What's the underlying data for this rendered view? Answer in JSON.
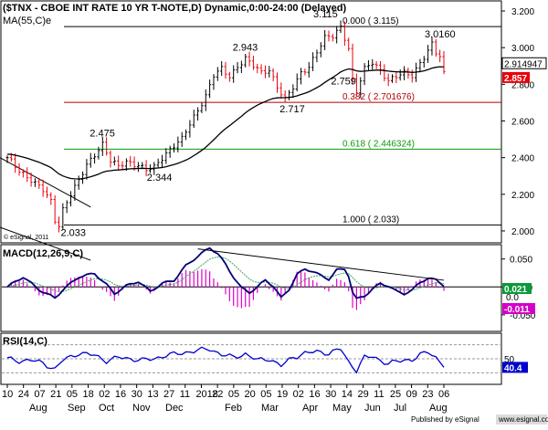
{
  "chart_data": [
    {
      "type": "candlestick",
      "title": "($TNX - CBOE INT RATE 10 YR T-NOTE,D) Dynamic,0:00-24:00 (Delayed)",
      "ma_label": "MA(55,C)e",
      "copyright": "© eSignal, 2011",
      "yticks": [
        "3.200",
        "3.000",
        "2.800",
        "2.600",
        "2.400",
        "2.200",
        "2.000"
      ],
      "ylim": [
        1.94,
        3.25
      ],
      "price_badges": {
        "upper": "2.914947",
        "current": "2.857"
      },
      "colors": {
        "up": "#000000",
        "down": "#e8000b",
        "ma": "#000000",
        "badge_red": "#e8000b"
      },
      "fib_levels": [
        {
          "value": 3.115,
          "label": "0.000 ( 3.115)",
          "color": "#000000"
        },
        {
          "value": 2.701676,
          "label": "0.382 ( 2.701676)",
          "color": "#b00000"
        },
        {
          "value": 2.446324,
          "label": "0.618 ( 2.446324)",
          "color": "#0a9a0a"
        },
        {
          "value": 2.033,
          "label": "1.000 ( 2.033)",
          "color": "#000000"
        }
      ],
      "annotations": [
        "2.033",
        "2.475",
        "2.344",
        "2.943",
        "2.717",
        "2.759",
        "3.115",
        "3.0160"
      ],
      "trend_channel": [
        {
          "x": [
            0,
            21
          ],
          "y": [
            2.4,
            2.13
          ]
        },
        {
          "x": [
            0,
            21
          ],
          "y": [
            2.02,
            1.84
          ]
        }
      ],
      "keypoints": [
        [
          0,
          2.4
        ],
        [
          3,
          2.33
        ],
        [
          6,
          2.28
        ],
        [
          9,
          2.22
        ],
        [
          11,
          2.16
        ],
        [
          12,
          2.06
        ],
        [
          13,
          2.033
        ],
        [
          14,
          2.12
        ],
        [
          16,
          2.2
        ],
        [
          18,
          2.27
        ],
        [
          20,
          2.36
        ],
        [
          22,
          2.42
        ],
        [
          24,
          2.475
        ],
        [
          26,
          2.38
        ],
        [
          28,
          2.35
        ],
        [
          30,
          2.38
        ],
        [
          33,
          2.36
        ],
        [
          35,
          2.33
        ],
        [
          37,
          2.344
        ],
        [
          39,
          2.4
        ],
        [
          41,
          2.45
        ],
        [
          44,
          2.5
        ],
        [
          46,
          2.58
        ],
        [
          48,
          2.66
        ],
        [
          50,
          2.74
        ],
        [
          52,
          2.85
        ],
        [
          54,
          2.88
        ],
        [
          56,
          2.84
        ],
        [
          58,
          2.9
        ],
        [
          60,
          2.943
        ],
        [
          62,
          2.9
        ],
        [
          64,
          2.86
        ],
        [
          66,
          2.88
        ],
        [
          68,
          2.79
        ],
        [
          70,
          2.717
        ],
        [
          72,
          2.78
        ],
        [
          74,
          2.86
        ],
        [
          76,
          2.9
        ],
        [
          78,
          2.98
        ],
        [
          80,
          3.05
        ],
        [
          82,
          3.06
        ],
        [
          84,
          3.115
        ],
        [
          86,
          3.0
        ],
        [
          87,
          2.82
        ],
        [
          88,
          2.759
        ],
        [
          90,
          2.88
        ],
        [
          92,
          2.92
        ],
        [
          94,
          2.88
        ],
        [
          96,
          2.82
        ],
        [
          98,
          2.84
        ],
        [
          100,
          2.86
        ],
        [
          102,
          2.85
        ],
        [
          104,
          2.92
        ],
        [
          106,
          2.98
        ],
        [
          107,
          3.016
        ],
        [
          108,
          2.97
        ],
        [
          109,
          2.95
        ],
        [
          110,
          2.857
        ]
      ],
      "n_bars": 111
    },
    {
      "type": "line",
      "title": "MACD(12,26,9,C)",
      "yticks": [
        "0.050",
        "0.000",
        "-0.050"
      ],
      "ylim": [
        -0.078,
        0.074
      ],
      "badges": [
        "0.021",
        "0.0",
        "-0.011"
      ],
      "keypoints": [
        [
          0,
          0.0
        ],
        [
          4,
          0.018
        ],
        [
          8,
          -0.005
        ],
        [
          12,
          -0.02
        ],
        [
          14,
          -0.005
        ],
        [
          18,
          0.018
        ],
        [
          22,
          0.024
        ],
        [
          25,
          0.004
        ],
        [
          27,
          -0.012
        ],
        [
          30,
          0.002
        ],
        [
          33,
          0.01
        ],
        [
          36,
          -0.008
        ],
        [
          39,
          0.006
        ],
        [
          42,
          0.012
        ],
        [
          45,
          0.038
        ],
        [
          48,
          0.055
        ],
        [
          51,
          0.07
        ],
        [
          53,
          0.06
        ],
        [
          55,
          0.04
        ],
        [
          57,
          0.018
        ],
        [
          59,
          -0.002
        ],
        [
          61,
          -0.01
        ],
        [
          63,
          0.0
        ],
        [
          65,
          0.012
        ],
        [
          67,
          0.002
        ],
        [
          69,
          -0.02
        ],
        [
          71,
          -0.004
        ],
        [
          73,
          0.022
        ],
        [
          75,
          0.032
        ],
        [
          77,
          0.028
        ],
        [
          79,
          0.02
        ],
        [
          81,
          0.014
        ],
        [
          83,
          0.03
        ],
        [
          85,
          0.032
        ],
        [
          86,
          0.02
        ],
        [
          87,
          -0.01
        ],
        [
          88,
          -0.022
        ],
        [
          90,
          -0.016
        ],
        [
          92,
          -0.004
        ],
        [
          94,
          0.006
        ],
        [
          96,
          0.002
        ],
        [
          98,
          -0.008
        ],
        [
          100,
          -0.012
        ],
        [
          102,
          -0.006
        ],
        [
          104,
          0.008
        ],
        [
          106,
          0.016
        ],
        [
          108,
          0.012
        ],
        [
          110,
          0.003
        ]
      ],
      "trendline": {
        "x": [
          48,
          110
        ],
        "y": [
          0.068,
          0.012
        ]
      },
      "colors": {
        "macd": "#00007a",
        "signal": "#3aa55a",
        "hist": "#e000c8",
        "badge_green": "#0a9a3a",
        "badge_magenta": "#d400c8"
      }
    },
    {
      "type": "line",
      "title": "RSI(14,C)",
      "badges": [
        "50",
        "40.4"
      ],
      "levels": [
        70,
        50,
        30
      ],
      "ylim": [
        15,
        85
      ],
      "keypoints": [
        [
          0,
          50
        ],
        [
          3,
          47
        ],
        [
          6,
          48
        ],
        [
          9,
          44
        ],
        [
          12,
          35
        ],
        [
          14,
          48
        ],
        [
          18,
          58
        ],
        [
          22,
          55
        ],
        [
          25,
          47
        ],
        [
          28,
          52
        ],
        [
          31,
          50
        ],
        [
          34,
          48
        ],
        [
          37,
          50
        ],
        [
          40,
          55
        ],
        [
          44,
          58
        ],
        [
          48,
          62
        ],
        [
          51,
          64
        ],
        [
          54,
          56
        ],
        [
          57,
          52
        ],
        [
          60,
          57
        ],
        [
          63,
          48
        ],
        [
          66,
          50
        ],
        [
          69,
          40
        ],
        [
          72,
          52
        ],
        [
          75,
          58
        ],
        [
          78,
          60
        ],
        [
          81,
          58
        ],
        [
          84,
          64
        ],
        [
          86,
          45
        ],
        [
          88,
          34
        ],
        [
          90,
          52
        ],
        [
          92,
          53
        ],
        [
          94,
          48
        ],
        [
          96,
          43
        ],
        [
          98,
          46
        ],
        [
          100,
          48
        ],
        [
          102,
          49
        ],
        [
          104,
          55
        ],
        [
          106,
          60
        ],
        [
          108,
          52
        ],
        [
          110,
          40.4
        ]
      ],
      "colors": {
        "rsi": "#0000cc",
        "badge": "#0000cc"
      }
    }
  ],
  "x_axis": {
    "day_labels": [
      "10",
      "24",
      "07",
      "21",
      "05",
      "18",
      "02",
      "16",
      "30",
      "13",
      "27",
      "11",
      "2018",
      "22",
      "05",
      "20",
      "05",
      "19",
      "02",
      "16",
      "30",
      "14",
      "29",
      "11",
      "25",
      "09",
      "23",
      "06"
    ],
    "month_labels": [
      "Aug",
      "Sep",
      "Oct",
      "Nov",
      "Dec",
      "Feb",
      "Mar",
      "Apr",
      "May",
      "Jun",
      "Jul",
      "Aug"
    ]
  },
  "footer": {
    "published": "Published by eSignal",
    "site": "www.esignal.com"
  }
}
